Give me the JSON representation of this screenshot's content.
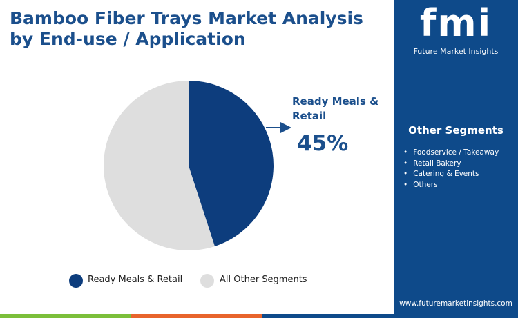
{
  "chart_data": {
    "type": "pie",
    "title": "Bamboo Fiber Trays Market Analysis by End-use / Application",
    "categories": [
      "Ready Meals & Retail",
      "All Other Segments"
    ],
    "values": [
      45,
      55
    ],
    "value_labels": [
      "45%",
      null
    ],
    "colors": [
      "#0d3d7d",
      "#dedede"
    ]
  },
  "sidebar": {
    "brand": "fmi",
    "brand_tagline": "Future Market Insights",
    "heading": "Other Segments",
    "items": [
      "Foodservice / Takeaway",
      "Retail Bakery",
      "Catering & Events",
      "Others"
    ],
    "website": "www.futuremarketinsights.com"
  }
}
